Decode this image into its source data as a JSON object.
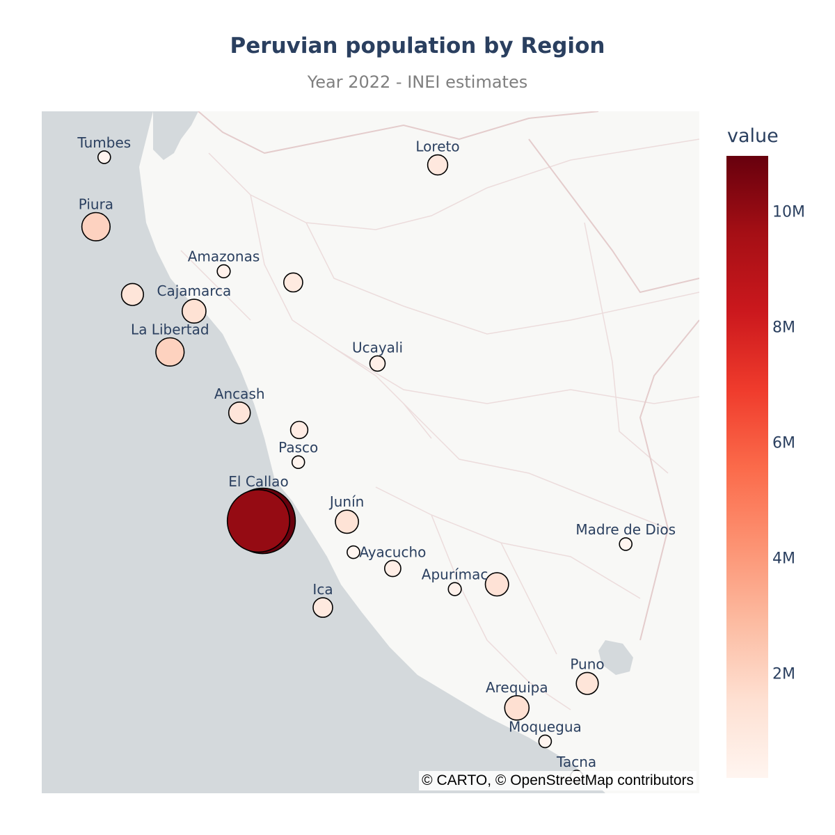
{
  "title": "Peruvian population by Region",
  "subtitle": "Year 2022 - INEI estimates",
  "attribution": "© CARTO, © OpenStreetMap contributors",
  "colorbar": {
    "title": "value",
    "ticks": [
      "10M",
      "8M",
      "6M",
      "4M",
      "2M"
    ]
  },
  "chart_data": {
    "type": "scatter",
    "title": "Peruvian population by Region",
    "subtitle": "Year 2022 - INEI estimates",
    "color_scale": "Reds",
    "color_range": [
      200000,
      11000000
    ],
    "legend_placement": "right",
    "points": [
      {
        "label": "Tumbes",
        "value": 260000,
        "lon": -80.45,
        "lat": -3.57
      },
      {
        "label": "Loreto",
        "value": 1030000,
        "lon": -73.25,
        "lat": -3.75
      },
      {
        "label": "Piura",
        "value": 2050000,
        "lon": -80.63,
        "lat": -5.19
      },
      {
        "label": "Amazonas",
        "value": 430000,
        "lon": -77.87,
        "lat": -6.23
      },
      {
        "label": "",
        "value": 1240000,
        "lon": -79.84,
        "lat": -6.77
      },
      {
        "label": "Cajamarca",
        "value": 1450000,
        "lon": -78.51,
        "lat": -7.16
      },
      {
        "label": "",
        "value": 920000,
        "lon": -76.37,
        "lat": -6.49
      },
      {
        "label": "La Libertad",
        "value": 2060000,
        "lon": -79.03,
        "lat": -8.11
      },
      {
        "label": "Ancash",
        "value": 1200000,
        "lon": -77.53,
        "lat": -9.53
      },
      {
        "label": "",
        "value": 760000,
        "lon": -76.24,
        "lat": -9.93
      },
      {
        "label": "Ucayali",
        "value": 600000,
        "lon": -74.55,
        "lat": -8.38
      },
      {
        "label": "Pasco",
        "value": 270000,
        "lon": -76.26,
        "lat": -10.68
      },
      {
        "label": "Junín",
        "value": 1380000,
        "lon": -75.21,
        "lat": -12.07
      },
      {
        "label": "Madre de Dios",
        "value": 180000,
        "lon": -69.19,
        "lat": -12.59
      },
      {
        "label": "El Callao",
        "value": 10000000,
        "lon": -77.12,
        "lat": -12.05
      },
      {
        "label": "",
        "value": 11000000,
        "lon": -77.03,
        "lat": -12.05
      },
      {
        "label": "",
        "value": 200000,
        "lon": -75.07,
        "lat": -12.78
      },
      {
        "label": "Ayacucho",
        "value": 670000,
        "lon": -74.22,
        "lat": -13.16
      },
      {
        "label": "",
        "value": 1390000,
        "lon": -71.97,
        "lat": -13.53
      },
      {
        "label": "Apurímac",
        "value": 430000,
        "lon": -72.88,
        "lat": -13.64
      },
      {
        "label": "Ica",
        "value": 980000,
        "lon": -75.73,
        "lat": -14.07
      },
      {
        "label": "Puno",
        "value": 1250000,
        "lon": -70.02,
        "lat": -15.84
      },
      {
        "label": "Arequipa",
        "value": 1530000,
        "lon": -71.54,
        "lat": -16.41
      },
      {
        "label": "Moquegua",
        "value": 200000,
        "lon": -70.93,
        "lat": -17.19
      },
      {
        "label": "Tacna",
        "value": 380000,
        "lon": -70.25,
        "lat": -18.01
      }
    ]
  }
}
